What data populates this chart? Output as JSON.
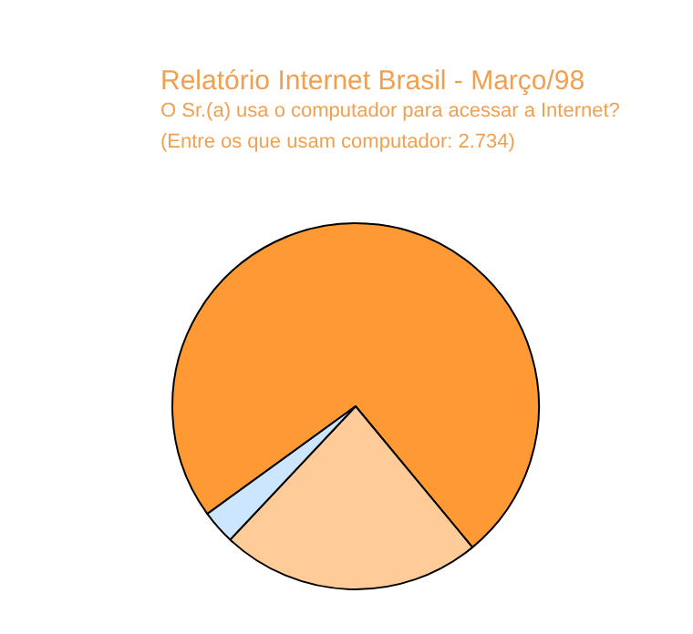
{
  "chart_data": {
    "type": "pie",
    "title": "Relatório Internet Brasil - Março/98",
    "subtitle": "O Sr.(a) usa o computador para acessar a Internet?",
    "annotations": [
      "(Entre os que usam computador: 2.734)"
    ],
    "categories": [
      null,
      null,
      null
    ],
    "values": [
      74,
      23,
      3
    ],
    "colors": [
      "#ff9933",
      "#ffcc99",
      "#cce6ff"
    ]
  }
}
